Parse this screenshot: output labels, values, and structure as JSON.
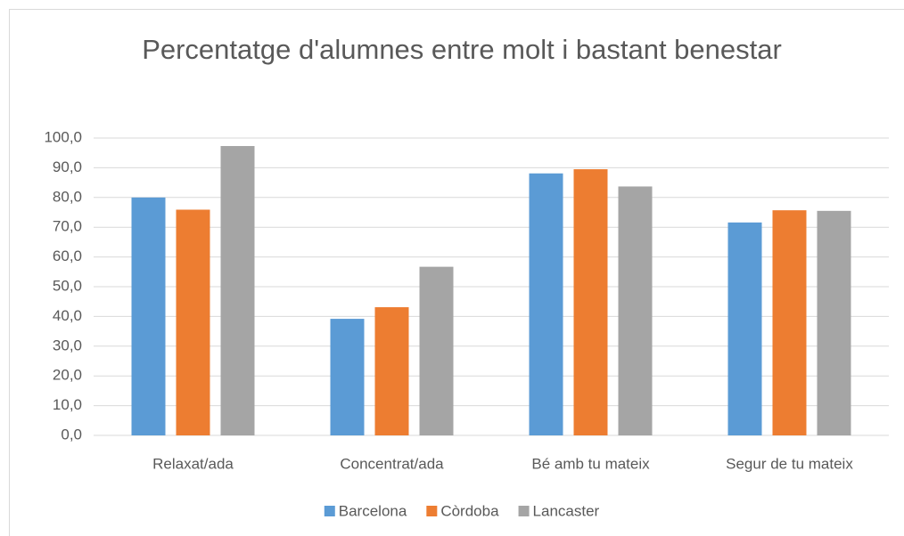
{
  "chart_data": {
    "type": "bar",
    "title": "Percentatge d'alumnes entre molt i bastant benestar",
    "categories": [
      "Relaxat/ada",
      "Concentrat/ada",
      "Bé amb tu mateix",
      "Segur de tu mateix"
    ],
    "series": [
      {
        "name": "Barcelona",
        "color": "#5b9bd5",
        "values": [
          80.0,
          39.2,
          88.1,
          71.6
        ]
      },
      {
        "name": "Còrdoba",
        "color": "#ed7d31",
        "values": [
          75.9,
          43.1,
          89.5,
          75.7
        ]
      },
      {
        "name": "Lancaster",
        "color": "#a5a5a5",
        "values": [
          97.3,
          56.7,
          83.7,
          75.5
        ]
      }
    ],
    "ylim": [
      0,
      100
    ],
    "yticks": [
      {
        "value": 0,
        "label": "0,0"
      },
      {
        "value": 10,
        "label": "10,0"
      },
      {
        "value": 20,
        "label": "20,0"
      },
      {
        "value": 30,
        "label": "30,0"
      },
      {
        "value": 40,
        "label": "40,0"
      },
      {
        "value": 50,
        "label": "50,0"
      },
      {
        "value": 60,
        "label": "60,0"
      },
      {
        "value": 70,
        "label": "70,0"
      },
      {
        "value": 80,
        "label": "80,0"
      },
      {
        "value": 90,
        "label": "90,0"
      },
      {
        "value": 100,
        "label": "100,0"
      }
    ],
    "grid": true,
    "legend": "bottom"
  }
}
